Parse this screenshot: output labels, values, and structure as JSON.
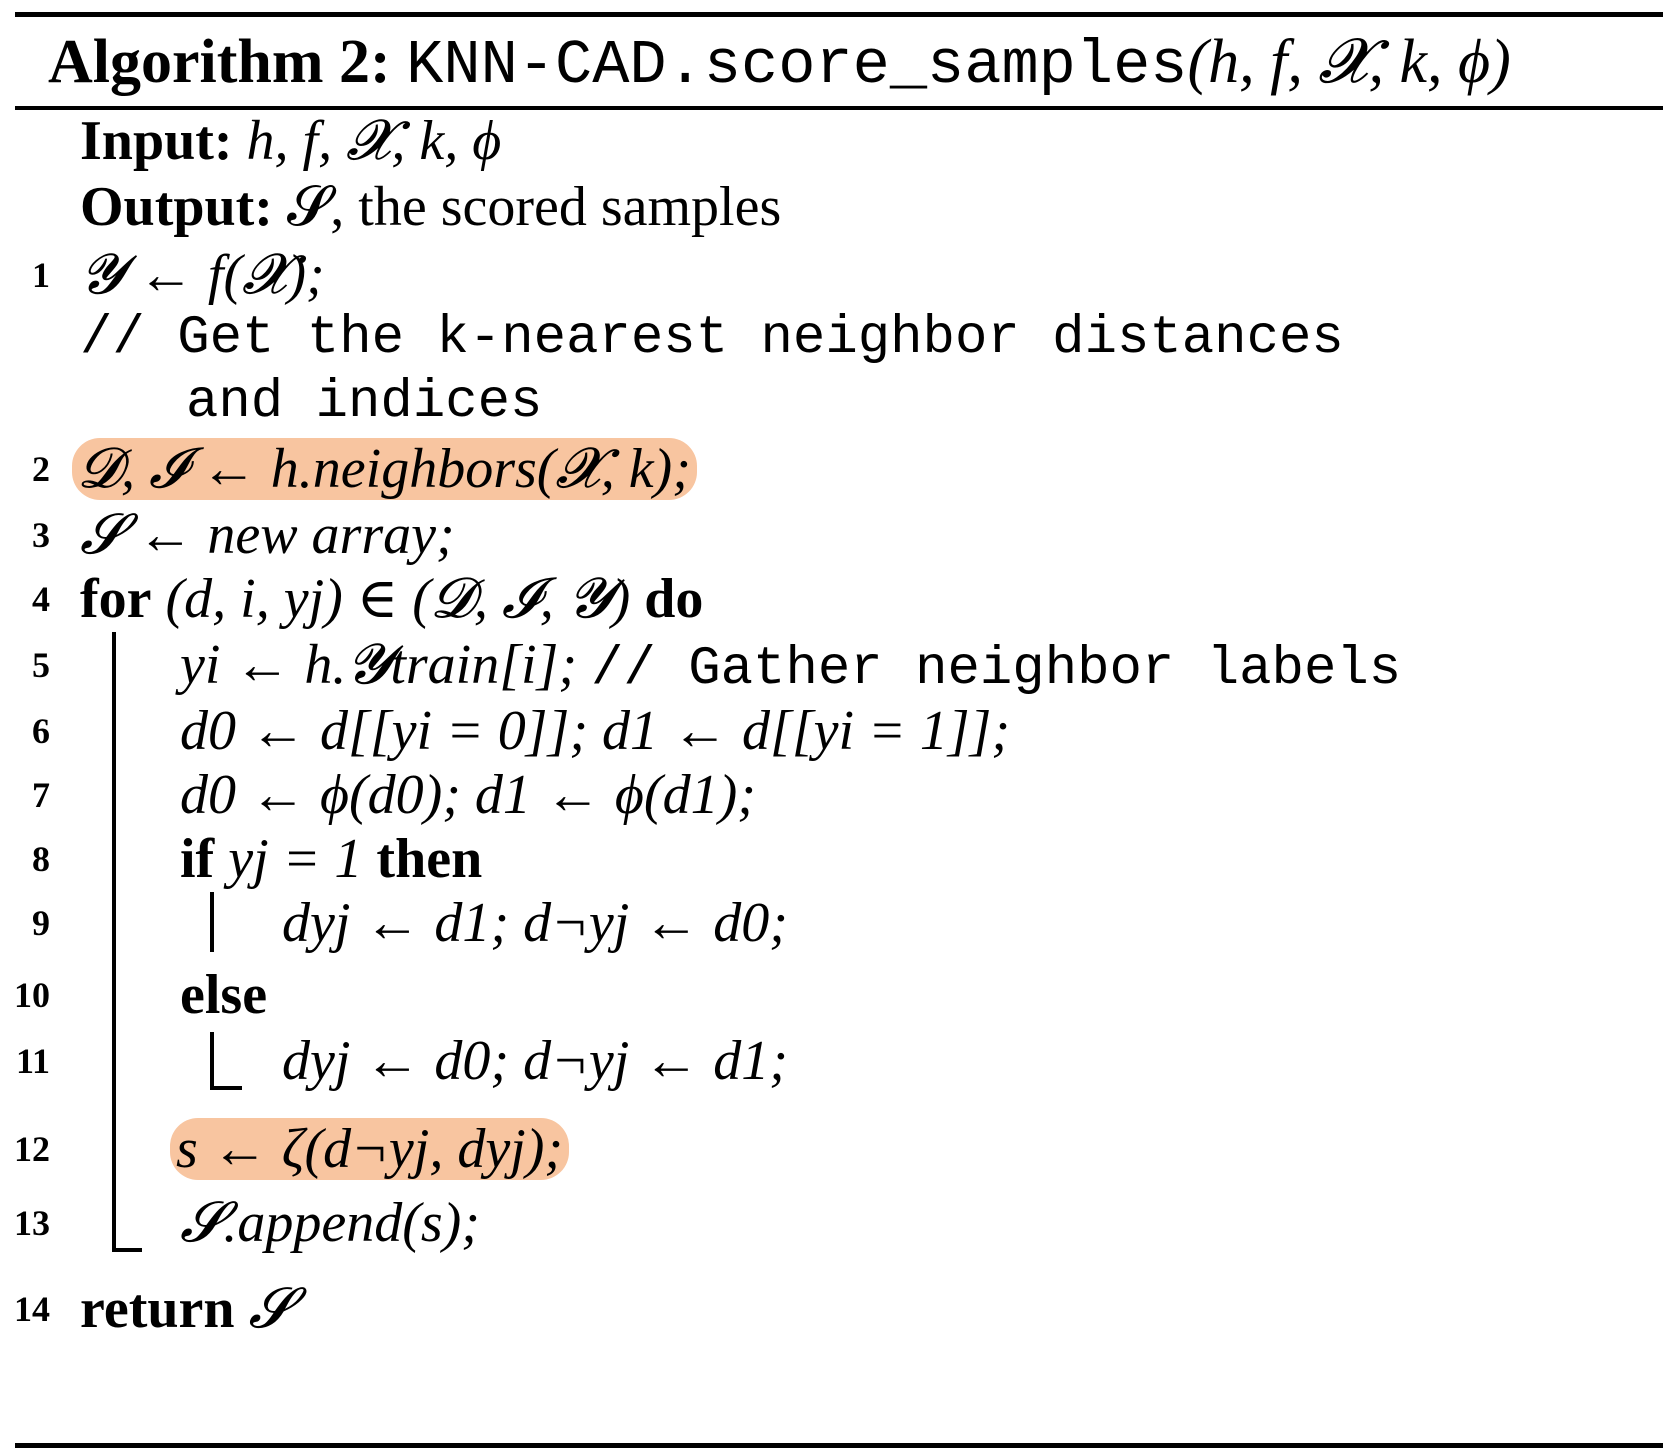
{
  "header": {
    "label": "Algorithm 2:",
    "func": "KNN-CAD.score_samples",
    "args": "(h, f, 𝓧, k, ϕ)"
  },
  "input": {
    "label": "Input:",
    "text": "h, f, 𝓧, k, ϕ"
  },
  "output": {
    "label": "Output:",
    "text": "𝓢, the scored samples"
  },
  "lines": [
    {
      "no": "1",
      "text": "𝓨 ← f(𝓧);"
    },
    {
      "no": "",
      "comment_a": "// Get the k-nearest neighbor distances",
      "comment_b": "and indices"
    },
    {
      "no": "2",
      "text": "𝓓, 𝓘 ← h.neighbors(𝓧, k);"
    },
    {
      "no": "3",
      "text": "𝓢 ← new array;"
    },
    {
      "no": "4",
      "kw_for": "for",
      "text": "(d, i, yj) ∈ (𝓓, 𝓘, 𝓨)",
      "kw_do": "do"
    },
    {
      "no": "5",
      "text": "yi ← h.𝓨train[i];",
      "comment": "// Gather neighbor labels"
    },
    {
      "no": "6",
      "text": "d0 ← d[[yi = 0]];  d1 ← d[[yi = 1]];"
    },
    {
      "no": "7",
      "text": "d0 ← ϕ(d0);  d1 ← ϕ(d1);"
    },
    {
      "no": "8",
      "kw_if": "if",
      "text": "yj = 1",
      "kw_then": "then"
    },
    {
      "no": "9",
      "text": "dyj ← d1;  d¬yj ← d0;"
    },
    {
      "no": "10",
      "kw_else": "else"
    },
    {
      "no": "11",
      "text": "dyj ← d0;  d¬yj ← d1;"
    },
    {
      "no": "12",
      "text": "s ← ζ(d¬yj, dyj);"
    },
    {
      "no": "13",
      "text": "𝓢.append(s);"
    },
    {
      "no": "14",
      "kw_return": "return",
      "text": "𝓢"
    }
  ],
  "highlight_color": "#f8c5a0"
}
